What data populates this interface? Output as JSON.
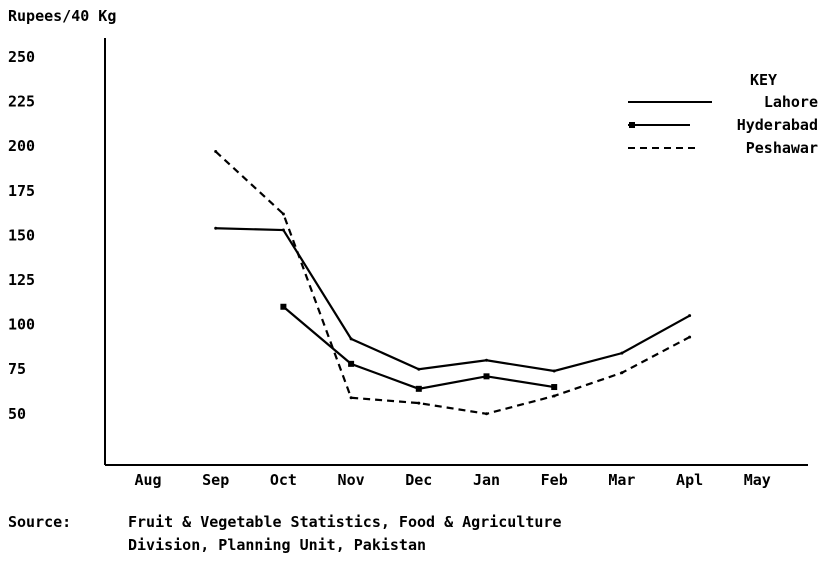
{
  "chart_data": {
    "type": "line",
    "ylabel": "Rupees/40 Kg",
    "xlabel": "",
    "categories": [
      "Aug",
      "Sep",
      "Oct",
      "Nov",
      "Dec",
      "Jan",
      "Feb",
      "Mar",
      "Apl",
      "May"
    ],
    "yticks": [
      250,
      225,
      200,
      175,
      150,
      125,
      100,
      75,
      50
    ],
    "ylim": [
      21,
      260
    ],
    "grid": false,
    "legend": {
      "title": "KEY",
      "placement": "top-right"
    },
    "series": [
      {
        "name": "Lahore",
        "style": "solid",
        "values": [
          null,
          154,
          153,
          92,
          75,
          80,
          74,
          84,
          105,
          null
        ]
      },
      {
        "name": "Hyderabad",
        "style": "solid-marked",
        "values": [
          null,
          null,
          110,
          78,
          64,
          71,
          65,
          null,
          null,
          null
        ]
      },
      {
        "name": "Peshawar",
        "style": "dashed",
        "values": [
          null,
          197,
          162,
          59,
          56,
          50,
          60,
          73,
          93,
          null
        ]
      }
    ],
    "source_label": "Source:",
    "source_lines": [
      "Fruit & Vegetable Statistics, Food & Agriculture",
      "Division, Planning Unit, Pakistan"
    ]
  }
}
